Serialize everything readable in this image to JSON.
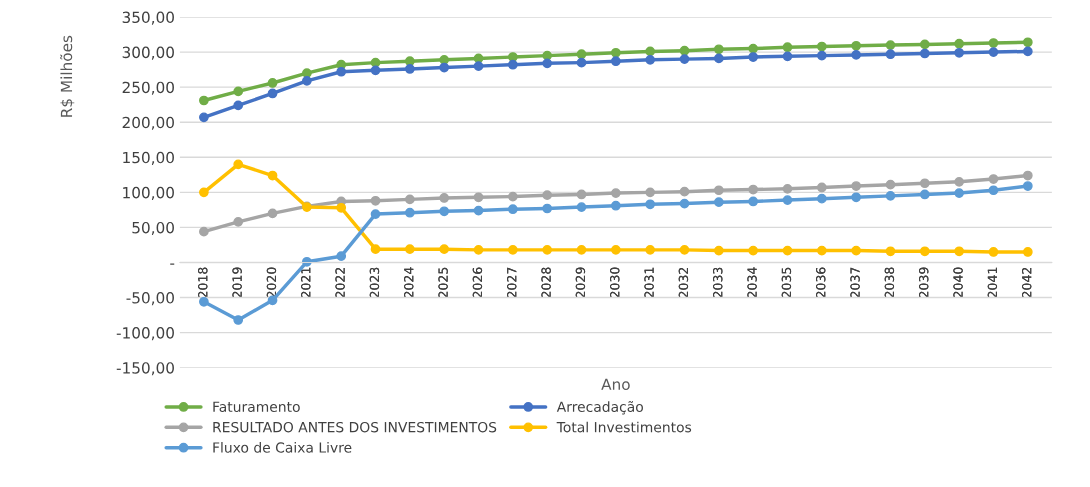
{
  "chart_data": {
    "type": "line",
    "xlabel": "Ano",
    "ylabel": "R$ Milhões",
    "categories": [
      "2018",
      "2019",
      "2020",
      "2021",
      "2022",
      "2023",
      "2024",
      "2025",
      "2026",
      "2027",
      "2028",
      "2029",
      "2030",
      "2031",
      "2032",
      "2033",
      "2034",
      "2035",
      "2036",
      "2037",
      "2038",
      "2039",
      "2040",
      "2041",
      "2042"
    ],
    "series": [
      {
        "name": "Faturamento",
        "color": "#70ad47",
        "values": [
          231,
          244,
          256,
          270,
          282,
          285,
          287,
          289,
          291,
          293,
          295,
          297,
          299,
          301,
          302,
          304,
          305,
          307,
          308,
          309,
          310,
          311,
          312,
          313,
          314
        ]
      },
      {
        "name": "Arrecadação",
        "color": "#4472c4",
        "values": [
          207,
          224,
          241,
          259,
          272,
          274,
          276,
          278,
          280,
          282,
          284,
          285,
          287,
          289,
          290,
          291,
          293,
          294,
          295,
          296,
          297,
          298,
          299,
          300,
          301
        ]
      },
      {
        "name": "RESULTADO ANTES DOS INVESTIMENTOS",
        "color": "#a5a5a5",
        "values": [
          44,
          58,
          70,
          80,
          87,
          88,
          90,
          92,
          93,
          94,
          96,
          97,
          99,
          100,
          101,
          103,
          104,
          105,
          107,
          109,
          111,
          113,
          115,
          119,
          124
        ]
      },
      {
        "name": "Total Investimentos",
        "color": "#ffc000",
        "values": [
          100,
          140,
          124,
          79,
          78,
          19,
          19,
          19,
          18,
          18,
          18,
          18,
          18,
          18,
          18,
          17,
          17,
          17,
          17,
          17,
          16,
          16,
          16,
          15,
          15
        ]
      },
      {
        "name": "Fluxo de Caixa Livre",
        "color": "#5b9bd5",
        "values": [
          -56,
          -82,
          -54,
          1,
          9,
          69,
          71,
          73,
          74,
          76,
          77,
          79,
          81,
          83,
          84,
          86,
          87,
          89,
          91,
          93,
          95,
          97,
          99,
          103,
          109
        ]
      }
    ],
    "ylim": [
      -150,
      350
    ],
    "yticks": [
      {
        "value": -150,
        "label": "-150,00"
      },
      {
        "value": -100,
        "label": "-100,00"
      },
      {
        "value": -50,
        "label": "-50,00"
      },
      {
        "value": 0,
        "label": "-"
      },
      {
        "value": 50,
        "label": "50,00"
      },
      {
        "value": 100,
        "label": "100,00"
      },
      {
        "value": 150,
        "label": "150,00"
      },
      {
        "value": 200,
        "label": "200,00"
      },
      {
        "value": 250,
        "label": "250,00"
      },
      {
        "value": 300,
        "label": "300,00"
      },
      {
        "value": 350,
        "label": "350,00"
      }
    ],
    "grid": "y",
    "legend": "bottom",
    "marker": "circle",
    "line_style": "solid"
  }
}
